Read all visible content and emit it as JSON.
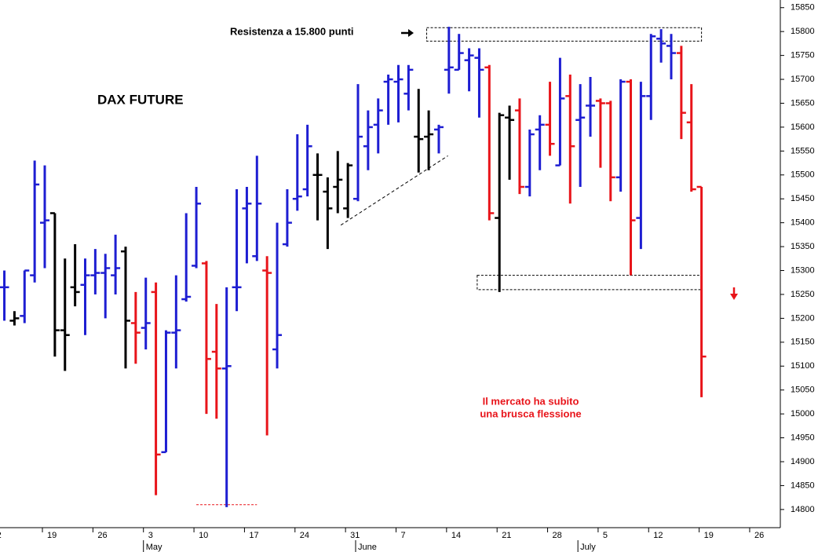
{
  "chart_data": {
    "type": "ohlc",
    "title": "DAX FUTURE",
    "annotation": "Resistenza a 15.800 punti",
    "annotation_lines": [
      "Il mercato ha subito",
      "una brusca flessione"
    ],
    "x": [
      1,
      2,
      3,
      4,
      5,
      6,
      7,
      8,
      9,
      10,
      11,
      12,
      13,
      14,
      15,
      16,
      17,
      18,
      19,
      20,
      21,
      22,
      23,
      24,
      25,
      26,
      27,
      28,
      29,
      30,
      31,
      32,
      33,
      34,
      35,
      36,
      37,
      38,
      39,
      40,
      41,
      42,
      43,
      44,
      45,
      46,
      47,
      48,
      49,
      50,
      51,
      52,
      53,
      54,
      55,
      56,
      57,
      58,
      59,
      60,
      61,
      62,
      63,
      64,
      65,
      66,
      67,
      68,
      69,
      70
    ],
    "open": [
      15265,
      15195,
      15205,
      15290,
      15400,
      15420,
      15175,
      15265,
      15270,
      15290,
      15295,
      15290,
      15340,
      15190,
      15180,
      15255,
      14920,
      15170,
      15240,
      15310,
      15315,
      15130,
      15095,
      15265,
      15430,
      15330,
      15300,
      15135,
      15355,
      15450,
      15470,
      15500,
      15465,
      15475,
      15430,
      15450,
      15560,
      15605,
      15695,
      15695,
      15670,
      15580,
      15580,
      15595,
      15720,
      15720,
      15740,
      15745,
      15725,
      15410,
      15620,
      15635,
      15475,
      15595,
      15605,
      15520,
      15665,
      15615,
      15645,
      15655,
      15650,
      15495,
      15695,
      15410,
      15665,
      15785,
      15770,
      15755,
      15610,
      15475
    ],
    "high": [
      15300,
      15215,
      15300,
      15530,
      15520,
      15420,
      15325,
      15355,
      15325,
      15345,
      15335,
      15375,
      15350,
      15255,
      15285,
      15275,
      15175,
      15290,
      15420,
      15475,
      15320,
      15230,
      15265,
      15470,
      15475,
      15540,
      15330,
      15400,
      15470,
      15585,
      15605,
      15545,
      15495,
      15550,
      15525,
      15690,
      15635,
      15660,
      15710,
      15730,
      15730,
      15680,
      15635,
      15605,
      15810,
      15795,
      15765,
      15765,
      15730,
      15630,
      15645,
      15660,
      15595,
      15625,
      15695,
      15745,
      15710,
      15690,
      15705,
      15660,
      15655,
      15700,
      15700,
      15695,
      15795,
      15805,
      15795,
      15770,
      15690,
      15475
    ],
    "low": [
      15195,
      15185,
      15190,
      15275,
      15305,
      15120,
      15090,
      15225,
      15165,
      15250,
      15200,
      15250,
      15095,
      15105,
      15135,
      14830,
      14920,
      15095,
      15235,
      15305,
      15000,
      14990,
      14805,
      15215,
      15315,
      15320,
      14955,
      15095,
      15350,
      15425,
      15455,
      15405,
      15345,
      15420,
      15410,
      15445,
      15510,
      15545,
      15605,
      15610,
      15635,
      15505,
      15510,
      15545,
      15670,
      15720,
      15675,
      15620,
      15405,
      15255,
      15490,
      15460,
      15455,
      15510,
      15540,
      15520,
      15440,
      15475,
      15580,
      15515,
      15445,
      15465,
      15290,
      15345,
      15615,
      15735,
      15700,
      15575,
      15465,
      15035
    ],
    "close": [
      15265,
      15200,
      15300,
      15480,
      15405,
      15175,
      15165,
      15255,
      15290,
      15295,
      15305,
      15305,
      15195,
      15170,
      15190,
      14915,
      15170,
      15175,
      15245,
      15440,
      15115,
      15095,
      15100,
      15265,
      15440,
      15440,
      15295,
      15165,
      15400,
      15455,
      15560,
      15500,
      15430,
      15490,
      15520,
      15580,
      15600,
      15635,
      15700,
      15700,
      15720,
      15575,
      15585,
      15600,
      15725,
      15755,
      15750,
      15720,
      15420,
      15625,
      15615,
      15475,
      15585,
      15605,
      15565,
      15660,
      15560,
      15620,
      15645,
      15650,
      15495,
      15695,
      15405,
      15665,
      15790,
      15775,
      15755,
      15630,
      15470,
      15120
    ],
    "colors": [
      "#1e1ed2",
      "#000000",
      "#1e1ed2",
      "#1e1ed2",
      "#1e1ed2",
      "#000000",
      "#000000",
      "#000000",
      "#1e1ed2",
      "#1e1ed2",
      "#1e1ed2",
      "#1e1ed2",
      "#000000",
      "#e8141a",
      "#1e1ed2",
      "#e8141a",
      "#1e1ed2",
      "#1e1ed2",
      "#1e1ed2",
      "#1e1ed2",
      "#e8141a",
      "#e8141a",
      "#1e1ed2",
      "#1e1ed2",
      "#1e1ed2",
      "#1e1ed2",
      "#e8141a",
      "#1e1ed2",
      "#1e1ed2",
      "#1e1ed2",
      "#1e1ed2",
      "#000000",
      "#000000",
      "#000000",
      "#000000",
      "#1e1ed2",
      "#1e1ed2",
      "#1e1ed2",
      "#1e1ed2",
      "#1e1ed2",
      "#1e1ed2",
      "#000000",
      "#000000",
      "#1e1ed2",
      "#1e1ed2",
      "#1e1ed2",
      "#1e1ed2",
      "#1e1ed2",
      "#e8141a",
      "#000000",
      "#000000",
      "#e8141a",
      "#1e1ed2",
      "#1e1ed2",
      "#e8141a",
      "#1e1ed2",
      "#e8141a",
      "#1e1ed2",
      "#1e1ed2",
      "#e8141a",
      "#e8141a",
      "#1e1ed2",
      "#e8141a",
      "#1e1ed2",
      "#1e1ed2",
      "#1e1ed2",
      "#1e1ed2",
      "#e8141a",
      "#e8141a",
      "#e8141a"
    ],
    "xlim": [
      0.57,
      77.8
    ],
    "xticks": [
      {
        "value": 0,
        "label": "2"
      },
      {
        "value": 5,
        "label": "19"
      },
      {
        "value": 10,
        "label": "26"
      },
      {
        "value": 15,
        "label": "3"
      },
      {
        "value": 20,
        "label": "10"
      },
      {
        "value": 25,
        "label": "17"
      },
      {
        "value": 30,
        "label": "24"
      },
      {
        "value": 35,
        "label": "31"
      },
      {
        "value": 40,
        "label": "7"
      },
      {
        "value": 45,
        "label": "14"
      },
      {
        "value": 50,
        "label": "21"
      },
      {
        "value": 55,
        "label": "28"
      },
      {
        "value": 60,
        "label": "5"
      },
      {
        "value": 65,
        "label": "12"
      },
      {
        "value": 70,
        "label": "19"
      },
      {
        "value": 75,
        "label": "26"
      }
    ],
    "month_ticks": [
      {
        "value": 15,
        "label": "May"
      },
      {
        "value": 36,
        "label": "June"
      },
      {
        "value": 58,
        "label": "July"
      }
    ],
    "ylim": [
      14762,
      15866
    ],
    "yticks": [
      14800,
      14850,
      14900,
      14950,
      15000,
      15050,
      15100,
      15150,
      15200,
      15250,
      15300,
      15350,
      15400,
      15450,
      15500,
      15550,
      15600,
      15650,
      15700,
      15750,
      15800,
      15850
    ],
    "zones": [
      {
        "x": [
          42.8,
          70
        ],
        "y": [
          15780,
          15808
        ]
      },
      {
        "x": [
          47.8,
          70
        ],
        "y": [
          15260,
          15290
        ]
      }
    ],
    "trendline": {
      "x": [
        34.3,
        44.9
      ],
      "y": [
        15395,
        15540
      ]
    },
    "low_line": {
      "x": [
        20,
        26
      ],
      "y": [
        14810,
        14810
      ]
    }
  }
}
